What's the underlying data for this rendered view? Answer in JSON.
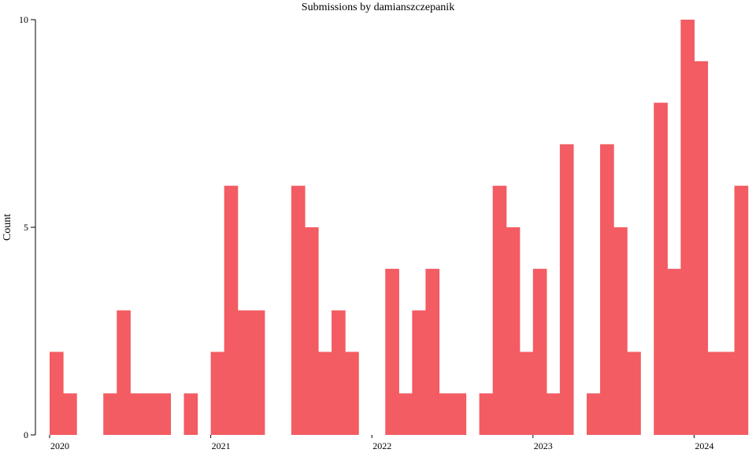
{
  "chart_data": {
    "type": "bar",
    "title": "Submissions by damianszczepanik",
    "xlabel": "",
    "ylabel": "Count",
    "ylim": [
      0,
      10
    ],
    "yticks": [
      0,
      5,
      10
    ],
    "xticks": [
      "2020",
      "2021",
      "2022",
      "2023",
      "2024"
    ],
    "bar_color": "#f25c62",
    "grid": false,
    "categories": [
      "2020-01",
      "2020-02",
      "2020-03",
      "2020-04",
      "2020-05",
      "2020-06",
      "2020-07",
      "2020-08",
      "2020-09",
      "2020-10",
      "2020-11",
      "2020-12",
      "2021-01",
      "2021-02",
      "2021-03",
      "2021-04",
      "2021-05",
      "2021-06",
      "2021-07",
      "2021-08",
      "2021-09",
      "2021-10",
      "2021-11",
      "2021-12",
      "2022-01",
      "2022-02",
      "2022-03",
      "2022-04",
      "2022-05",
      "2022-06",
      "2022-07",
      "2022-08",
      "2022-09",
      "2022-10",
      "2022-11",
      "2022-12",
      "2023-01",
      "2023-02",
      "2023-03",
      "2023-04",
      "2023-05",
      "2023-06",
      "2023-07",
      "2023-08",
      "2023-09",
      "2023-10",
      "2023-11",
      "2023-12",
      "2024-01",
      "2024-02",
      "2024-03",
      "2024-04"
    ],
    "values": [
      2,
      1,
      0,
      0,
      1,
      3,
      1,
      1,
      1,
      0,
      1,
      0,
      2,
      6,
      3,
      3,
      0,
      0,
      6,
      5,
      2,
      3,
      2,
      0,
      0,
      4,
      1,
      3,
      4,
      1,
      1,
      0,
      1,
      6,
      5,
      2,
      4,
      1,
      7,
      0,
      1,
      7,
      5,
      2,
      0,
      8,
      4,
      10,
      9,
      2,
      2,
      6
    ]
  }
}
